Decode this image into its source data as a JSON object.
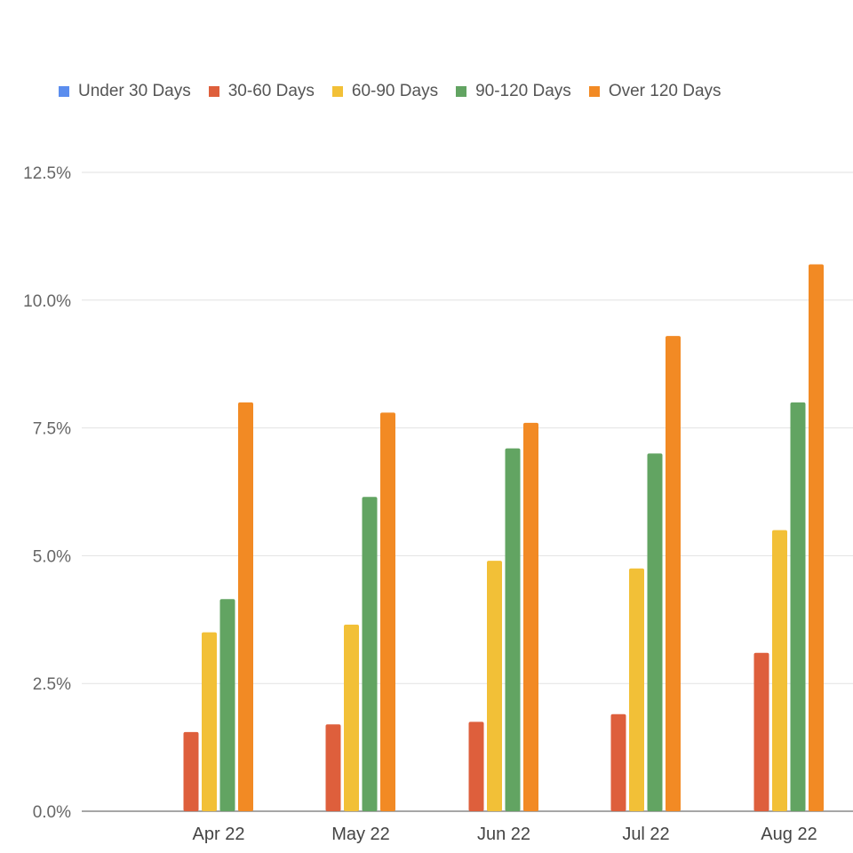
{
  "chart_data": {
    "type": "bar",
    "title": "",
    "xlabel": "",
    "ylabel": "",
    "ylim": [
      0,
      12.5
    ],
    "yticks": [
      "0.0%",
      "2.5%",
      "5.0%",
      "7.5%",
      "10.0%",
      "12.5%"
    ],
    "grid": true,
    "legend_position": "top",
    "categories": [
      "Apr 22",
      "May 22",
      "Jun 22",
      "Jul 22",
      "Aug 22"
    ],
    "series": [
      {
        "name": "Under 30 Days",
        "color": "#5b8dee",
        "values": [
          0,
          0,
          0,
          0,
          0
        ]
      },
      {
        "name": "30-60 Days",
        "color": "#de5f3c",
        "values": [
          1.55,
          1.7,
          1.75,
          1.9,
          3.1
        ]
      },
      {
        "name": "60-90 Days",
        "color": "#f2c037",
        "values": [
          3.5,
          3.65,
          4.9,
          4.75,
          5.5
        ]
      },
      {
        "name": "90-120 Days",
        "color": "#62a462",
        "values": [
          4.15,
          6.15,
          7.1,
          7.0,
          8.0
        ]
      },
      {
        "name": "Over 120 Days",
        "color": "#f28a24",
        "values": [
          8.0,
          7.8,
          7.6,
          9.3,
          10.7
        ]
      }
    ]
  },
  "legend": {
    "items": [
      {
        "label": "Under 30 Days",
        "color": "#5b8dee"
      },
      {
        "label": "30-60 Days",
        "color": "#de5f3c"
      },
      {
        "label": "60-90 Days",
        "color": "#f2c037"
      },
      {
        "label": "90-120 Days",
        "color": "#62a462"
      },
      {
        "label": "Over 120 Days",
        "color": "#f28a24"
      }
    ]
  }
}
